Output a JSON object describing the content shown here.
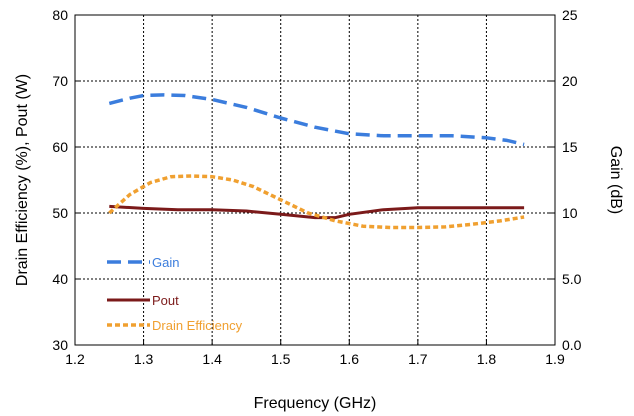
{
  "chart_data": {
    "type": "line",
    "xlabel": "Frequency (GHz)",
    "ylabel_left": "Drain Efficiency (%), Pout (W)",
    "ylabel_right": "Gain (dB)",
    "xlim": [
      1.2,
      1.9
    ],
    "ylim_left": [
      30,
      80
    ],
    "ylim_right": [
      0,
      25
    ],
    "x_ticks": [
      "1.2",
      "1.3",
      "1.4",
      "1.5",
      "1.6",
      "1.7",
      "1.8",
      "1.9"
    ],
    "y_left_ticks": [
      "30",
      "40",
      "50",
      "60",
      "70",
      "80"
    ],
    "y_right_ticks": [
      "0.0",
      "5.0",
      "10",
      "15",
      "20",
      "25"
    ],
    "grid": true,
    "series": [
      {
        "name": "Gain",
        "axis": "right",
        "color": "#3b7ddd",
        "style": "long-dash",
        "x": [
          1.25,
          1.28,
          1.3,
          1.33,
          1.36,
          1.4,
          1.45,
          1.5,
          1.55,
          1.6,
          1.65,
          1.7,
          1.75,
          1.8,
          1.83,
          1.855
        ],
        "y": [
          18.3,
          18.7,
          18.9,
          18.95,
          18.9,
          18.6,
          18.0,
          17.2,
          16.5,
          16.0,
          15.85,
          15.85,
          15.85,
          15.7,
          15.5,
          15.2
        ]
      },
      {
        "name": "Pout",
        "axis": "left",
        "color": "#7b1a1a",
        "style": "solid",
        "x": [
          1.25,
          1.3,
          1.35,
          1.4,
          1.45,
          1.5,
          1.55,
          1.58,
          1.6,
          1.65,
          1.7,
          1.75,
          1.8,
          1.855
        ],
        "y": [
          51.0,
          50.7,
          50.5,
          50.5,
          50.3,
          49.8,
          49.3,
          49.3,
          49.8,
          50.5,
          50.8,
          50.8,
          50.8,
          50.8
        ]
      },
      {
        "name": "Drain Efficiency",
        "axis": "left",
        "color": "#f0a030",
        "style": "short-dash",
        "x": [
          1.25,
          1.28,
          1.31,
          1.34,
          1.37,
          1.4,
          1.43,
          1.46,
          1.5,
          1.54,
          1.58,
          1.62,
          1.66,
          1.7,
          1.74,
          1.78,
          1.82,
          1.855
        ],
        "y": [
          50.0,
          52.8,
          54.6,
          55.5,
          55.6,
          55.5,
          55.0,
          54.0,
          52.0,
          50.0,
          48.8,
          48.0,
          47.8,
          47.8,
          47.9,
          48.3,
          48.8,
          49.4
        ]
      }
    ]
  }
}
